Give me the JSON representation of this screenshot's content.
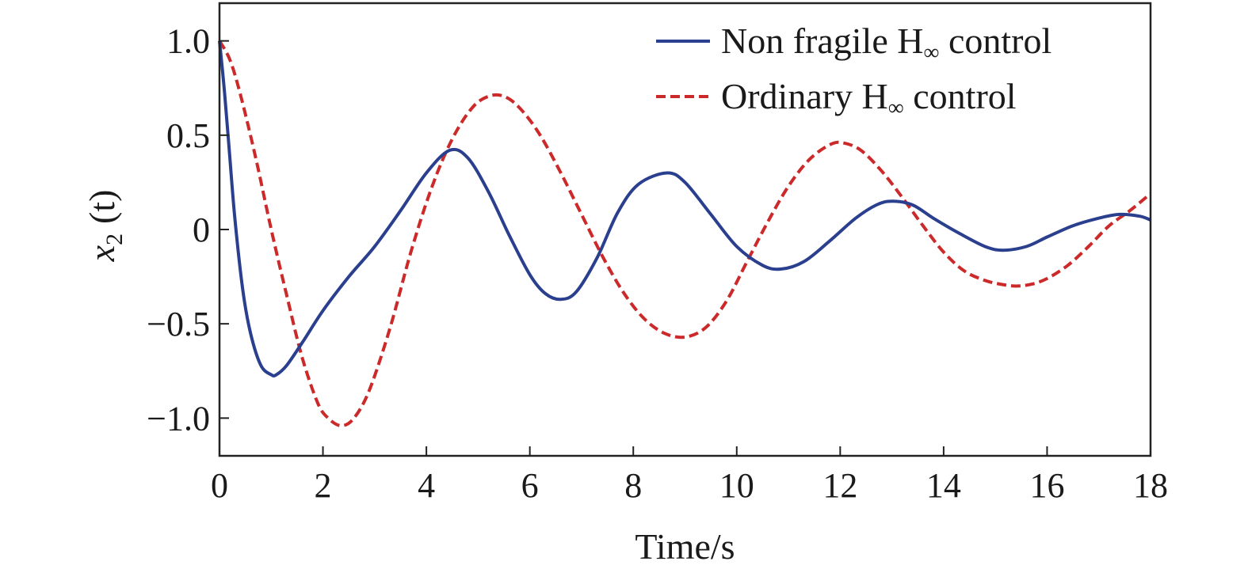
{
  "chart_data": {
    "type": "line",
    "xlabel": "Time/s",
    "ylabel_main": "x",
    "ylabel_sub": "2",
    "ylabel_arg": "(t)",
    "xlim": [
      0,
      18
    ],
    "ylim": [
      -1.2,
      1.2
    ],
    "grid": false,
    "legend_position": "top-right",
    "x_ticks": [
      0,
      2,
      4,
      6,
      8,
      10,
      12,
      14,
      16,
      18
    ],
    "x_tick_labels": [
      "0",
      "2",
      "4",
      "6",
      "8",
      "10",
      "12",
      "14",
      "16",
      "18"
    ],
    "y_ticks": [
      1.0,
      0.5,
      0,
      -0.5,
      -1.0
    ],
    "y_tick_labels": [
      "1.0",
      "0.5",
      "0",
      "−0.5",
      "−1.0"
    ],
    "series": [
      {
        "name_main": "Non fragile H",
        "name_sub": "∞",
        "name_tail": " control",
        "color": "#2b3f8f",
        "dash": "solid",
        "x": [
          0,
          0.1,
          0.2,
          0.3,
          0.45,
          0.6,
          0.8,
          1.0,
          1.1,
          1.3,
          1.6,
          2.0,
          2.5,
          3.0,
          3.5,
          4.0,
          4.45,
          4.8,
          5.2,
          5.6,
          6.0,
          6.3,
          6.6,
          6.9,
          7.3,
          7.7,
          8.1,
          8.65,
          9.0,
          9.5,
          10.0,
          10.5,
          10.85,
          11.3,
          11.8,
          12.3,
          12.7,
          13.0,
          13.4,
          13.8,
          14.3,
          14.8,
          15.15,
          15.6,
          16.0,
          16.5,
          17.0,
          17.4,
          17.8,
          18.0
        ],
        "y": [
          1.0,
          0.72,
          0.38,
          0.05,
          -0.32,
          -0.55,
          -0.72,
          -0.77,
          -0.77,
          -0.72,
          -0.6,
          -0.43,
          -0.25,
          -0.09,
          0.1,
          0.3,
          0.42,
          0.38,
          0.2,
          -0.03,
          -0.24,
          -0.34,
          -0.37,
          -0.33,
          -0.15,
          0.09,
          0.24,
          0.3,
          0.25,
          0.08,
          -0.09,
          -0.19,
          -0.21,
          -0.17,
          -0.06,
          0.06,
          0.13,
          0.15,
          0.13,
          0.06,
          -0.02,
          -0.09,
          -0.11,
          -0.09,
          -0.04,
          0.02,
          0.06,
          0.08,
          0.07,
          0.05
        ]
      },
      {
        "name_main": "Ordinary H",
        "name_sub": "∞",
        "name_tail": " control",
        "color": "#cc2a2a",
        "dash": "dashed",
        "x": [
          0,
          0.2,
          0.4,
          0.7,
          1.0,
          1.3,
          1.6,
          1.9,
          2.1,
          2.35,
          2.6,
          2.9,
          3.3,
          3.7,
          4.1,
          4.5,
          4.9,
          5.25,
          5.55,
          5.85,
          6.2,
          6.6,
          7.0,
          7.4,
          7.8,
          8.2,
          8.6,
          9.0,
          9.4,
          9.8,
          10.2,
          10.6,
          11.0,
          11.4,
          11.8,
          12.05,
          12.4,
          12.8,
          13.2,
          13.6,
          14.0,
          14.4,
          14.8,
          15.1,
          15.4,
          15.7,
          16.0,
          16.4,
          16.8,
          17.2,
          17.6,
          18.0
        ],
        "y": [
          1.0,
          0.9,
          0.72,
          0.38,
          0.0,
          -0.35,
          -0.68,
          -0.92,
          -1.0,
          -1.04,
          -1.0,
          -0.85,
          -0.52,
          -0.12,
          0.22,
          0.48,
          0.65,
          0.71,
          0.7,
          0.63,
          0.5,
          0.3,
          0.08,
          -0.14,
          -0.33,
          -0.47,
          -0.55,
          -0.57,
          -0.52,
          -0.38,
          -0.17,
          0.04,
          0.23,
          0.37,
          0.45,
          0.46,
          0.42,
          0.31,
          0.17,
          0.02,
          -0.12,
          -0.22,
          -0.27,
          -0.29,
          -0.3,
          -0.29,
          -0.26,
          -0.19,
          -0.09,
          0.02,
          0.1,
          0.19
        ]
      }
    ]
  }
}
